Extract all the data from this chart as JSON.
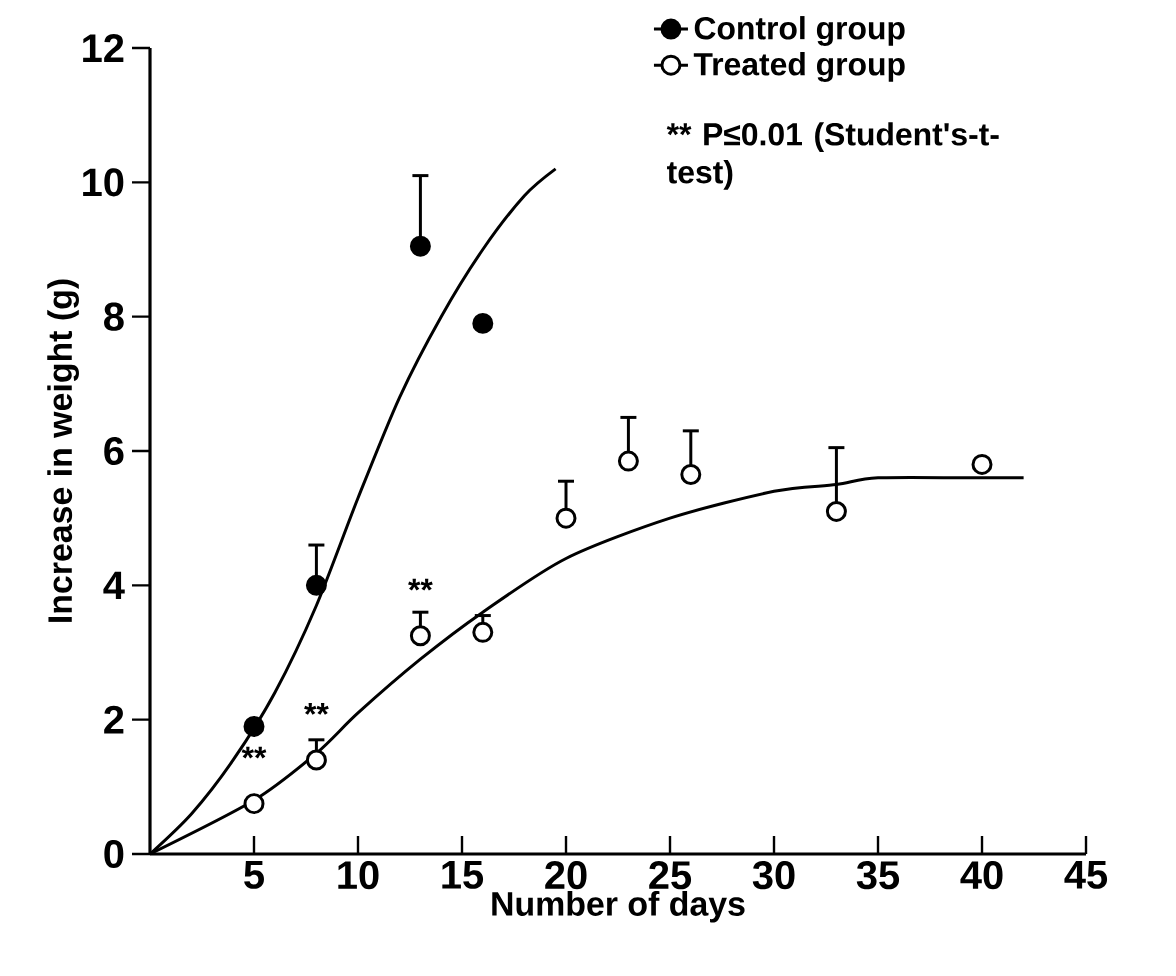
{
  "chart_data": {
    "type": "scatter",
    "xlabel": "Number of days",
    "ylabel": "Increase in weight (g)",
    "xlim": [
      0,
      45
    ],
    "xticks": [
      5,
      10,
      15,
      20,
      25,
      30,
      35,
      40,
      45
    ],
    "ylim": [
      0,
      12
    ],
    "yticks": [
      0,
      2,
      4,
      6,
      8,
      10,
      12
    ],
    "legend": "top right",
    "grid": false,
    "series": [
      {
        "name": "Control group",
        "color": "#000000",
        "marker": "circle",
        "x": [
          5,
          8,
          13,
          16
        ],
        "values": [
          1.9,
          4.0,
          9.05,
          7.9
        ],
        "errors": [
          null,
          [
            4.0,
            4.6
          ],
          [
            9.05,
            10.1
          ],
          null
        ]
      },
      {
        "name": "Treated group",
        "color": "#000000",
        "marker": "circle",
        "x": [
          5,
          8,
          13,
          16,
          20,
          23,
          26,
          33,
          40
        ],
        "values": [
          0.75,
          1.4,
          3.25,
          3.3,
          5.0,
          5.85,
          5.65,
          5.1,
          5.8
        ],
        "errors": [
          null,
          [
            1.4,
            1.7
          ],
          [
            3.25,
            3.6
          ],
          [
            3.3,
            3.55
          ],
          [
            5.0,
            5.55
          ],
          [
            5.85,
            6.5
          ],
          [
            5.65,
            6.3
          ],
          [
            5.1,
            6.05
          ],
          null
        ]
      },
      {
        "color": "#000000",
        "type": "line",
        "marker": "none",
        "x": [
          0,
          2,
          4,
          6,
          8,
          10,
          12,
          14,
          16,
          18,
          19.5
        ],
        "values": [
          0,
          0.6,
          1.4,
          2.4,
          3.7,
          5.3,
          6.8,
          8.0,
          9.0,
          9.8,
          10.2
        ]
      },
      {
        "color": "#000000",
        "type": "line",
        "marker": "none",
        "x": [
          0,
          5,
          8,
          10,
          13,
          16,
          20,
          25,
          30,
          33,
          35,
          40,
          42
        ],
        "values": [
          0,
          0.8,
          1.5,
          2.1,
          2.9,
          3.6,
          4.4,
          5.0,
          5.4,
          5.5,
          5.6,
          5.6,
          5.6
        ]
      }
    ],
    "annotations": [
      "** P≤0.01 (Student's-t-test)",
      {
        "text": "**",
        "x": 5,
        "y": 0.75
      },
      {
        "text": "**",
        "x": 8,
        "y": 1.4
      },
      {
        "text": "**",
        "x": 13,
        "y": 3.25
      }
    ]
  }
}
